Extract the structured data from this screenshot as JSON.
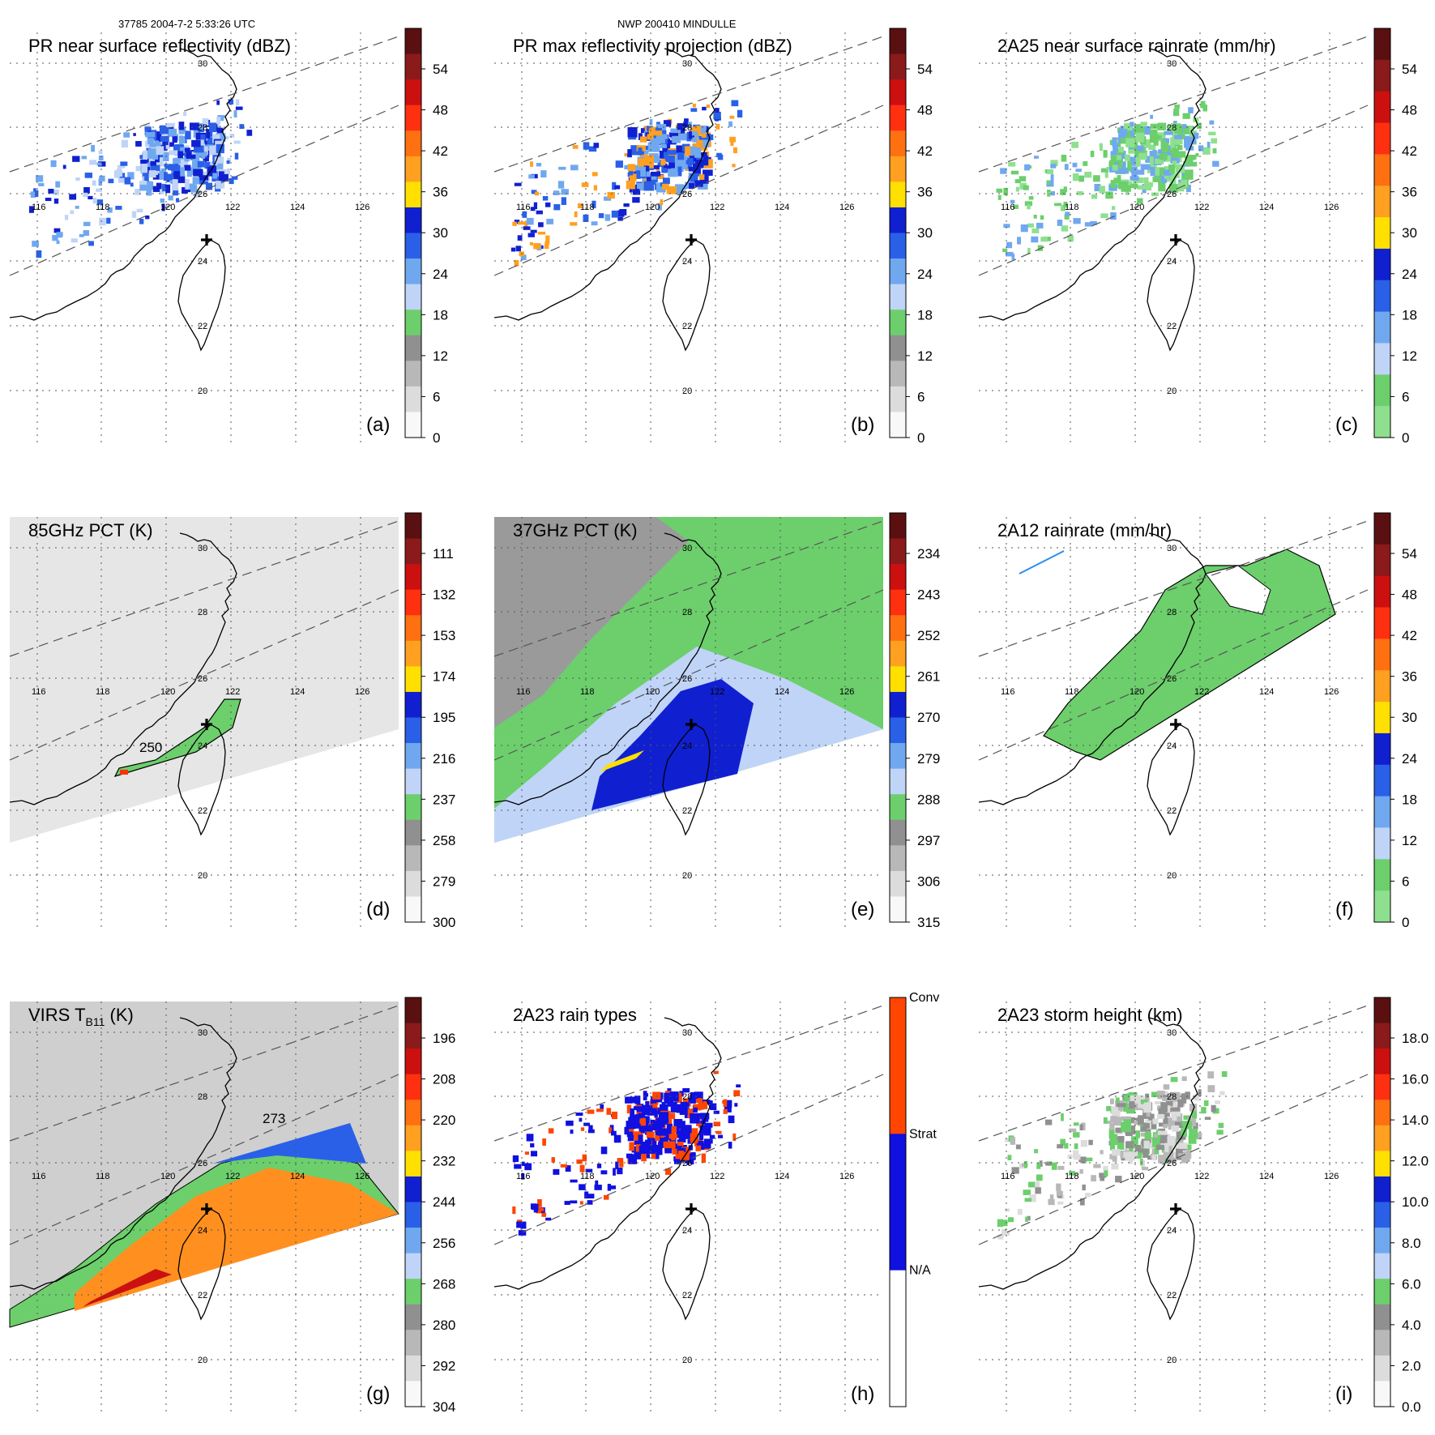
{
  "header": {
    "orbit_info": "37785 2004-7-2 5:33:26 UTC",
    "case_info": "NWP 200410 MINDULLE"
  },
  "map": {
    "lon_labels": [
      "116",
      "118",
      "120",
      "122",
      "124",
      "126"
    ],
    "lat_labels": [
      "30",
      "28",
      "26",
      "24",
      "22",
      "20"
    ]
  },
  "panels": [
    {
      "id": "a",
      "title": "PR near surface reflectivity (dBZ)",
      "letter": "(a)",
      "scale": {
        "ticks": [
          "54",
          "48",
          "42",
          "36",
          "30",
          "24",
          "18",
          "12",
          "6",
          "0"
        ],
        "colors": [
          "#5a1010",
          "#8b1a1a",
          "#cc1010",
          "#ff3010",
          "#ff7010",
          "#ffa020",
          "#ffe000",
          "#1020d0",
          "#2a60e8",
          "#70a8f0",
          "#c0d4f8",
          "#6ccf6c",
          "#909090",
          "#b8b8b8",
          "#dcdcdc",
          "#f8f8f8"
        ]
      }
    },
    {
      "id": "b",
      "title": "PR max reflectivity projection (dBZ)",
      "letter": "(b)",
      "scale": {
        "ticks": [
          "54",
          "48",
          "42",
          "36",
          "30",
          "24",
          "18",
          "12",
          "6",
          "0"
        ],
        "colors": [
          "#5a1010",
          "#8b1a1a",
          "#cc1010",
          "#ff3010",
          "#ff7010",
          "#ffa020",
          "#ffe000",
          "#1020d0",
          "#2a60e8",
          "#70a8f0",
          "#c0d4f8",
          "#6ccf6c",
          "#909090",
          "#b8b8b8",
          "#dcdcdc",
          "#f8f8f8"
        ]
      }
    },
    {
      "id": "c",
      "title": "2A25 near surface rainrate (mm/hr)",
      "letter": "(c)",
      "scale": {
        "ticks": [
          "54",
          "48",
          "42",
          "36",
          "30",
          "24",
          "18",
          "12",
          "6",
          "0"
        ],
        "colors": [
          "#5a1010",
          "#8b1a1a",
          "#cc1010",
          "#ff3010",
          "#ff7010",
          "#ffa020",
          "#ffe000",
          "#1020d0",
          "#2a60e8",
          "#70a8f0",
          "#c0d4f8",
          "#6ccf6c",
          "#8ee08e"
        ]
      }
    },
    {
      "id": "d",
      "title": "85GHz PCT (K)",
      "letter": "(d)",
      "scale": {
        "ticks": [
          "111",
          "132",
          "153",
          "174",
          "195",
          "216",
          "237",
          "258",
          "279",
          "300"
        ],
        "colors": [
          "#5a1010",
          "#8b1a1a",
          "#cc1010",
          "#ff3010",
          "#ff7010",
          "#ffa020",
          "#ffe000",
          "#1020d0",
          "#2a60e8",
          "#70a8f0",
          "#c0d4f8",
          "#6ccf6c",
          "#909090",
          "#b8b8b8",
          "#dcdcdc",
          "#f8f8f8"
        ]
      }
    },
    {
      "id": "e",
      "title": "37GHz PCT (K)",
      "letter": "(e)",
      "scale": {
        "ticks": [
          "234",
          "243",
          "252",
          "261",
          "270",
          "279",
          "288",
          "297",
          "306",
          "315"
        ],
        "colors": [
          "#5a1010",
          "#8b1a1a",
          "#cc1010",
          "#ff3010",
          "#ff7010",
          "#ffa020",
          "#ffe000",
          "#1020d0",
          "#2a60e8",
          "#70a8f0",
          "#c0d4f8",
          "#6ccf6c",
          "#909090",
          "#b8b8b8",
          "#dcdcdc",
          "#f8f8f8"
        ]
      }
    },
    {
      "id": "f",
      "title": "2A12 rainrate (mm/hr)",
      "letter": "(f)",
      "scale": {
        "ticks": [
          "54",
          "48",
          "42",
          "36",
          "30",
          "24",
          "18",
          "12",
          "6",
          "0"
        ],
        "colors": [
          "#5a1010",
          "#8b1a1a",
          "#cc1010",
          "#ff3010",
          "#ff7010",
          "#ffa020",
          "#ffe000",
          "#1020d0",
          "#2a60e8",
          "#70a8f0",
          "#c0d4f8",
          "#6ccf6c",
          "#8ee08e"
        ]
      }
    },
    {
      "id": "g",
      "title": "VIRS T",
      "title_sub": "B11",
      "title_tail": " (K)",
      "letter": "(g)",
      "scale": {
        "ticks": [
          "196",
          "208",
          "220",
          "232",
          "244",
          "256",
          "268",
          "280",
          "292",
          "304"
        ],
        "colors": [
          "#5a1010",
          "#8b1a1a",
          "#cc1010",
          "#ff3010",
          "#ff7010",
          "#ffa020",
          "#ffe000",
          "#1020d0",
          "#2a60e8",
          "#70a8f0",
          "#c0d4f8",
          "#6ccf6c",
          "#909090",
          "#b8b8b8",
          "#dcdcdc",
          "#f8f8f8"
        ]
      }
    },
    {
      "id": "h",
      "title": "2A23 rain types",
      "letter": "(h)",
      "scale": {
        "ticks": [
          "Conv",
          "Strat",
          "N/A"
        ],
        "colors": [
          "#ff4500",
          "#1010e0",
          "#ffffff"
        ]
      }
    },
    {
      "id": "i",
      "title": "2A23 storm height (km)",
      "letter": "(i)",
      "scale": {
        "ticks": [
          "18.0",
          "16.0",
          "14.0",
          "12.0",
          "10.0",
          "8.0",
          "6.0",
          "4.0",
          "2.0",
          "0.0"
        ],
        "colors": [
          "#5a1010",
          "#8b1a1a",
          "#cc1010",
          "#ff3010",
          "#ff7010",
          "#ffa020",
          "#ffe000",
          "#1020d0",
          "#2a60e8",
          "#70a8f0",
          "#c0d4f8",
          "#6ccf6c",
          "#909090",
          "#b8b8b8",
          "#dcdcdc",
          "#f8f8f8"
        ]
      }
    }
  ],
  "annotations": {
    "d_contour": "250",
    "g_contour": "273"
  }
}
